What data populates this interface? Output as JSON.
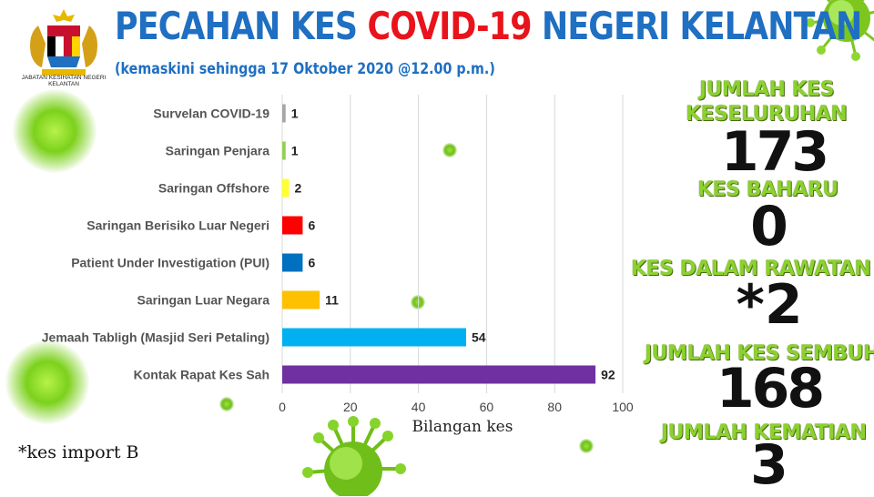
{
  "logo": {
    "caption": "JABATAN KESIHATAN NEGERI KELANTAN"
  },
  "header": {
    "title_part1": "PECAHAN KES ",
    "title_part2": "COVID-19",
    "title_part3": " NEGERI KELANTAN",
    "subtitle": "(kemaskini sehingga 17 Oktober 2020 @12.00 p.m.)"
  },
  "colors": {
    "title_blue": "#1f6fc2",
    "title_red": "#e8141c",
    "stat_green": "#8bd12f"
  },
  "chart_data": {
    "type": "bar",
    "orientation": "horizontal",
    "categories": [
      "Survelan COVID-19",
      "Saringan Penjara",
      "Saringan Offshore",
      "Saringan Berisiko Luar Negeri",
      "Patient Under Investigation (PUI)",
      "Saringan Luar Negara",
      "Jemaah Tabligh (Masjid Seri Petaling)",
      "Kontak Rapat Kes Sah"
    ],
    "values": [
      1,
      1,
      2,
      6,
      6,
      11,
      54,
      92
    ],
    "colors": [
      "#a6a6a6",
      "#92d050",
      "#ffff33",
      "#ff0000",
      "#0070c0",
      "#ffc000",
      "#00b0f0",
      "#7030a0"
    ],
    "xlabel": "Bilangan kes",
    "xlim": [
      0,
      100
    ],
    "xticks": [
      0,
      20,
      40,
      60,
      80,
      100
    ],
    "grid": true
  },
  "stats": {
    "total_label": "JUMLAH KES",
    "total_label2": "KESELURUHAN",
    "total_value": "173",
    "new_label": "KES BAHARU",
    "new_value": "0",
    "treatment_label": "KES DALAM RAWATAN",
    "treatment_value": "*2",
    "recovered_label": "JUMLAH KES SEMBUH",
    "recovered_value": "168",
    "deaths_label": "JUMLAH KEMATIAN",
    "deaths_value": "3"
  },
  "note": "*kes import B"
}
